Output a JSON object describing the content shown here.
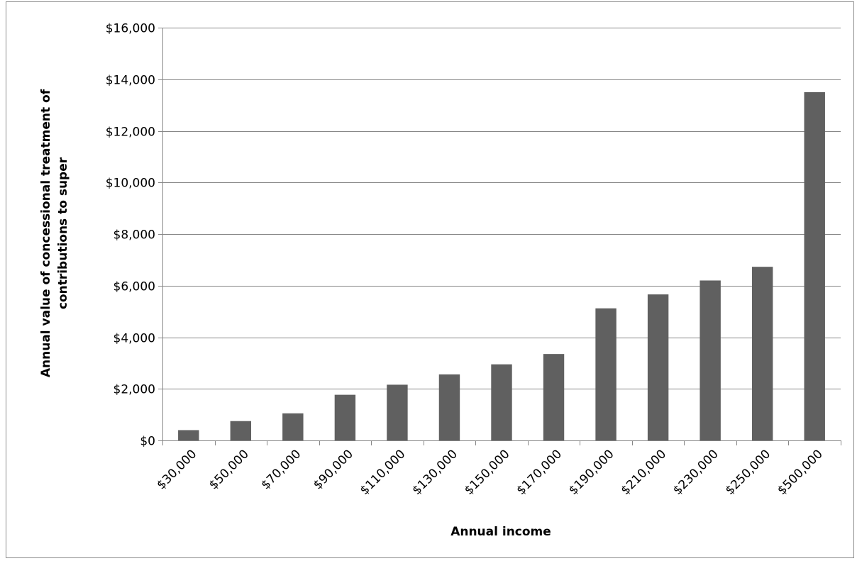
{
  "chart_data": {
    "type": "bar",
    "title": "",
    "xlabel": "Annual income",
    "ylabel_lines": [
      "Annual value of concessional treatment of",
      "contributions to super"
    ],
    "categories": [
      "$30,000",
      "$50,000",
      "$70,000",
      "$90,000",
      "$110,000",
      "$130,000",
      "$150,000",
      "$170,000",
      "$190,000",
      "$210,000",
      "$230,000",
      "$250,000",
      "$500,000"
    ],
    "values": [
      400,
      750,
      1050,
      1770,
      2160,
      2560,
      2950,
      3350,
      5120,
      5660,
      6200,
      6730,
      13500
    ],
    "ylim": [
      0,
      16000
    ],
    "yticks": [
      0,
      2000,
      4000,
      6000,
      8000,
      10000,
      12000,
      14000,
      16000
    ],
    "ytick_labels": [
      "$0",
      "$2,000",
      "$4,000",
      "$6,000",
      "$8,000",
      "$10,000",
      "$12,000",
      "$14,000",
      "$16,000"
    ],
    "grid": true,
    "legend": "none",
    "bar_color": "#606060",
    "grid_color": "#868686"
  }
}
